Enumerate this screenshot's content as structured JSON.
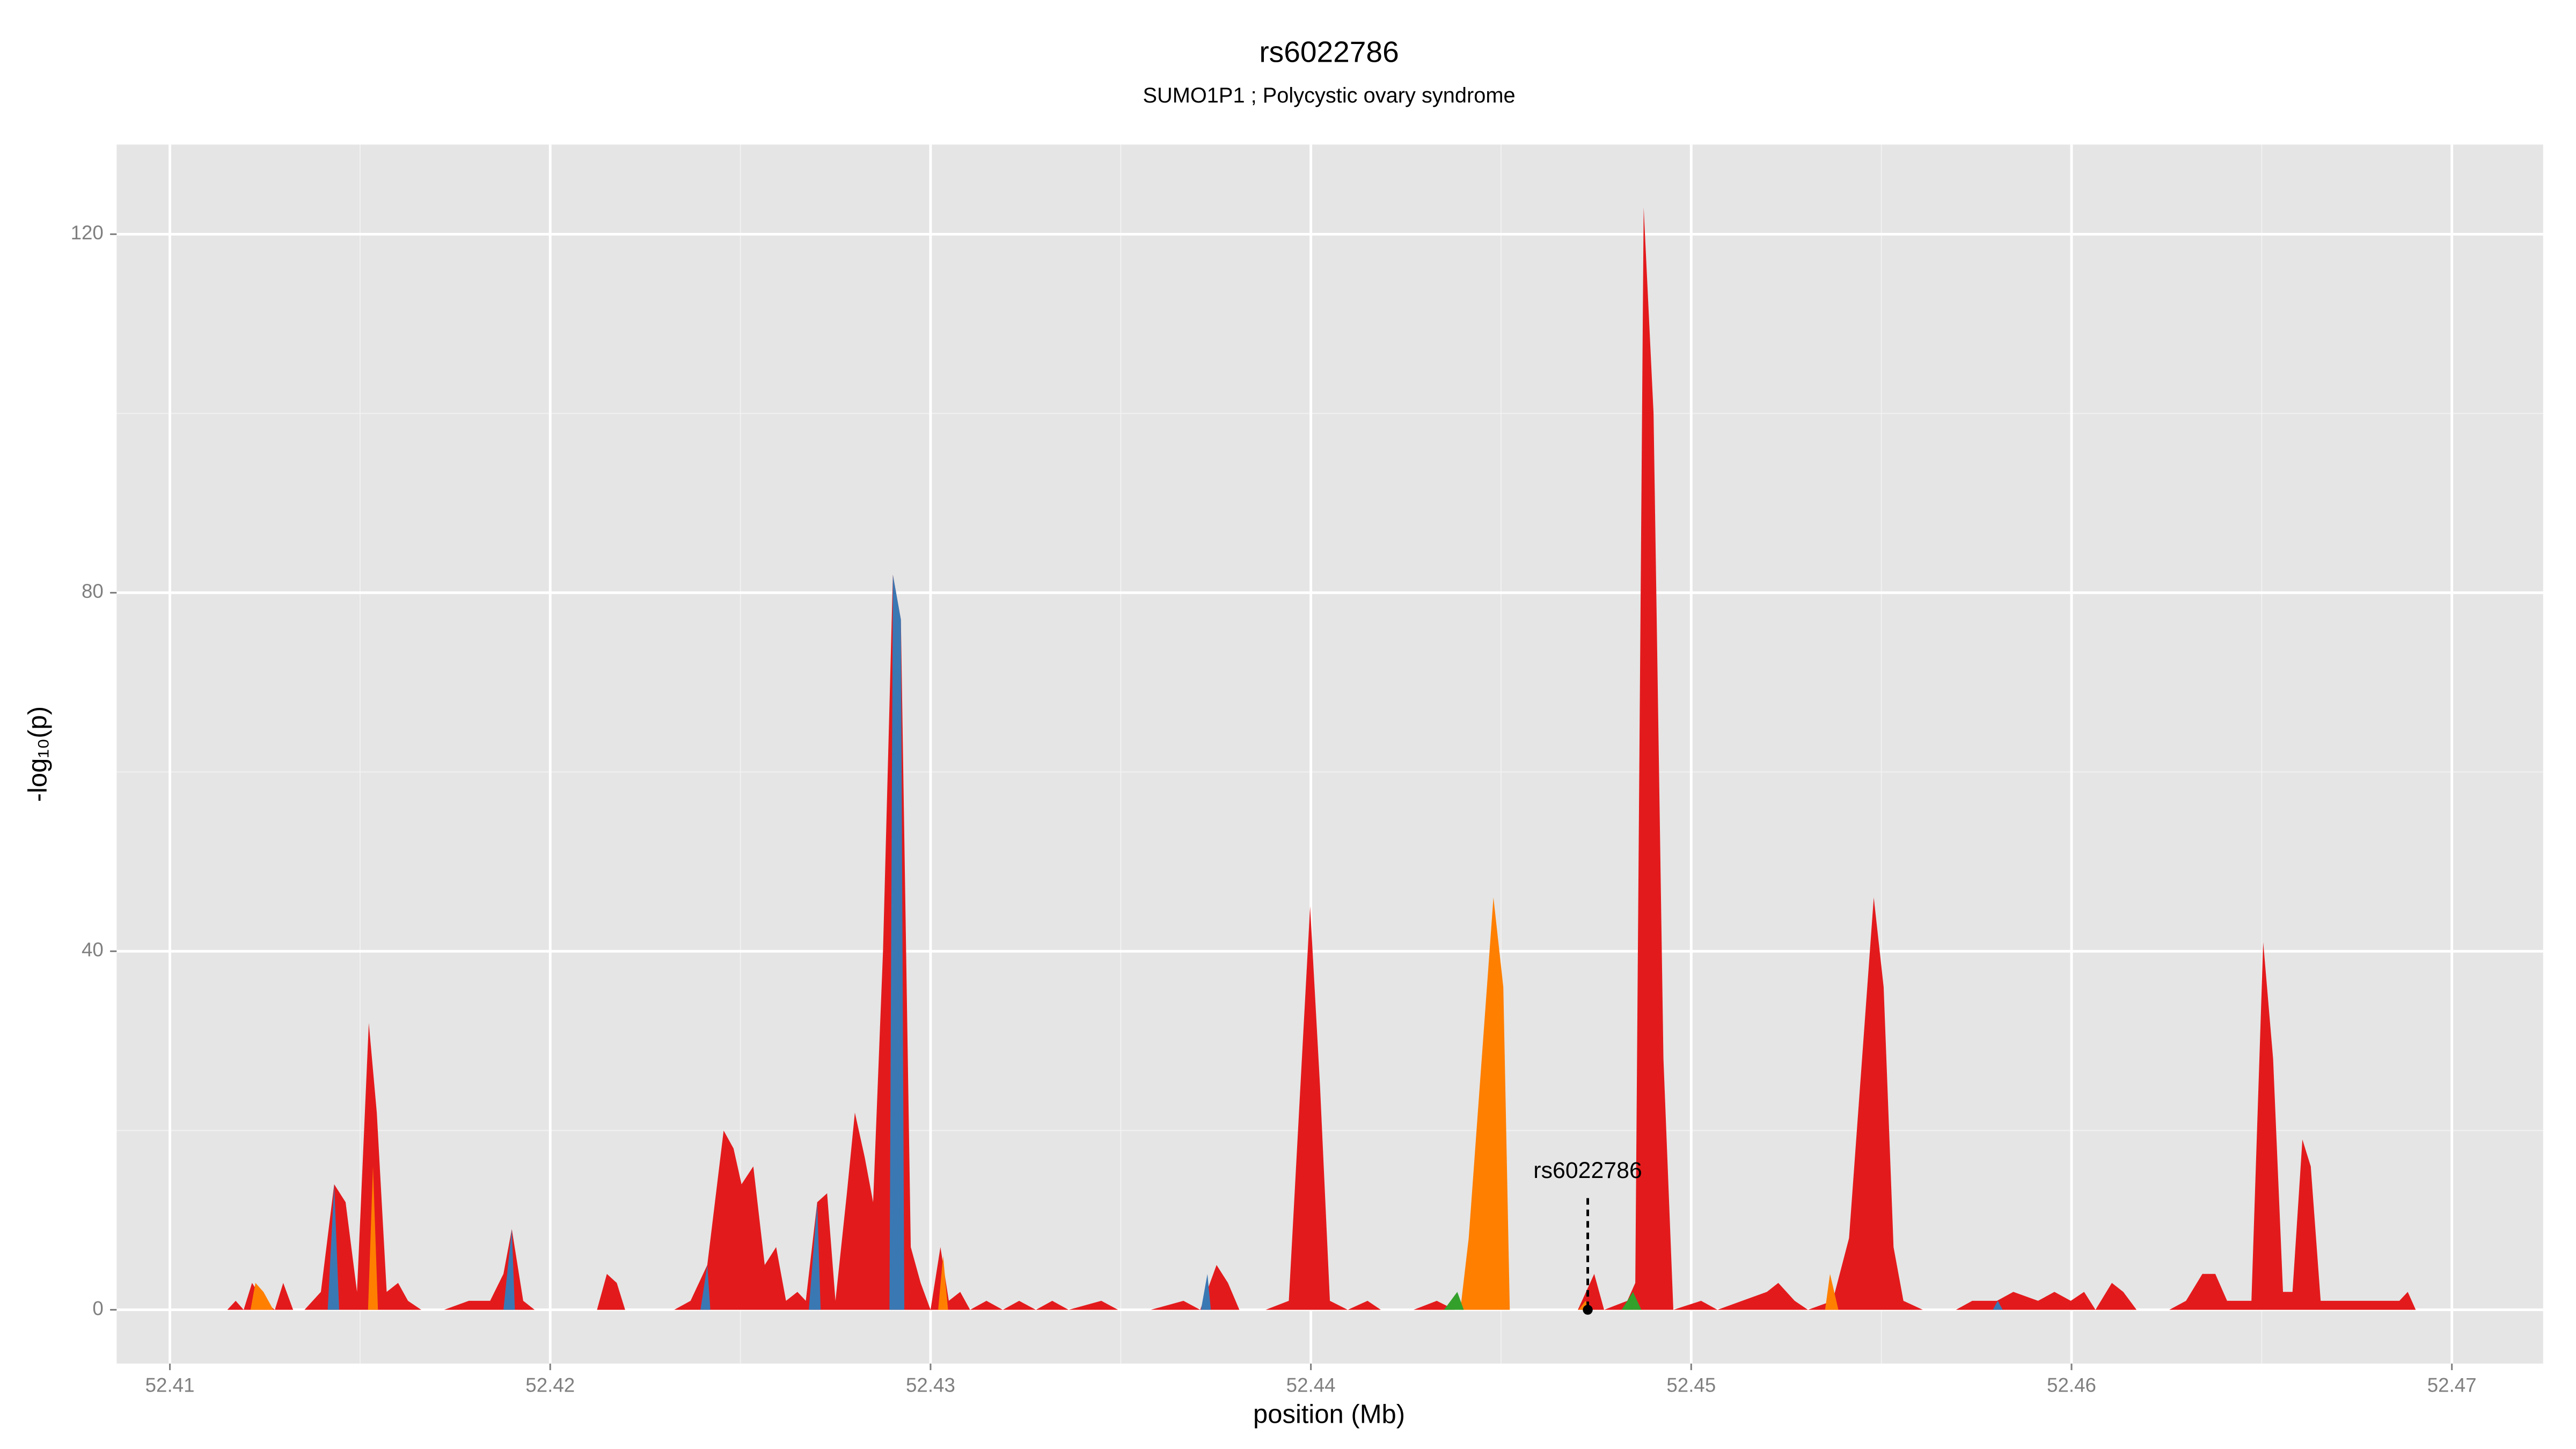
{
  "chart_data": {
    "type": "area",
    "title": "rs6022786",
    "subtitle": "SUMO1P1 ; Polycystic ovary syndrome",
    "x_label": "position (Mb)",
    "y_label": "-log₁₀(p)",
    "xlim": [
      52.4086,
      52.4724
    ],
    "ylim": [
      -6,
      130
    ],
    "xticks": [
      52.41,
      52.42,
      52.43,
      52.44,
      52.45,
      52.46,
      52.47
    ],
    "yticks": [
      0,
      40,
      80,
      120
    ],
    "grid": true,
    "series": [
      {
        "color": "#e31a1c",
        "x": [
          52.41151,
          52.41173,
          52.41194,
          52.41216,
          52.41246,
          52.41276,
          52.41298,
          52.41324,
          52.41354,
          52.41397,
          52.41432,
          52.41462,
          52.41492,
          52.41523,
          52.41544,
          52.4157,
          52.416,
          52.41626,
          52.41661,
          52.41721,
          52.41786,
          52.41842,
          52.41877,
          52.41899,
          52.41929,
          52.41959,
          52.42024,
          52.42089,
          52.42123,
          52.42149,
          52.42175,
          52.42197,
          52.42261,
          52.42326,
          52.42369,
          52.42413,
          52.42456,
          52.42482,
          52.42503,
          52.42534,
          52.42564,
          52.42594,
          52.4262,
          52.4265,
          52.42672,
          52.42702,
          52.42728,
          52.4275,
          52.4278,
          52.42801,
          52.42827,
          52.42849,
          52.42875,
          52.42901,
          52.42922,
          52.42948,
          52.42974,
          52.43,
          52.43026,
          52.43048,
          52.43078,
          52.43104,
          52.43147,
          52.4319,
          52.43233,
          52.43277,
          52.4332,
          52.43363,
          52.43449,
          52.43493,
          52.43579,
          52.43665,
          52.43709,
          52.43752,
          52.43782,
          52.43812,
          52.43881,
          52.43942,
          52.43998,
          52.44024,
          52.4405,
          52.44097,
          52.44149,
          52.44184,
          52.4427,
          52.44331,
          52.44378,
          52.44486,
          52.44637,
          52.44702,
          52.44745,
          52.44771,
          52.44832,
          52.44853,
          52.44875,
          52.44901,
          52.44927,
          52.44953,
          52.45026,
          52.45069,
          52.45134,
          52.45199,
          52.45229,
          52.45272,
          52.45307,
          52.45372,
          52.45415,
          52.4548,
          52.45506,
          52.45532,
          52.45558,
          52.45609,
          52.45696,
          52.45739,
          52.45804,
          52.45847,
          52.45912,
          52.45955,
          52.45998,
          52.46033,
          52.46063,
          52.46106,
          52.46136,
          52.46171,
          52.46257,
          52.46301,
          52.46344,
          52.46378,
          52.46409,
          52.46473,
          52.46504,
          52.4653,
          52.46556,
          52.46581,
          52.46607,
          52.46629,
          52.46655,
          52.46733,
          52.46797,
          52.46862,
          52.46884,
          52.46905,
          52.46949
        ],
        "values": [
          0,
          1,
          0,
          3,
          1,
          0,
          3,
          0,
          0,
          2,
          14,
          12,
          2,
          32,
          22,
          2,
          3,
          1,
          0,
          0,
          1,
          1,
          4,
          9,
          1,
          0,
          0,
          0,
          0,
          4,
          3,
          0,
          0,
          0,
          1,
          5,
          20,
          18,
          14,
          16,
          5,
          7,
          1,
          2,
          1,
          12,
          13,
          1,
          13,
          22,
          17,
          12,
          40,
          82,
          77,
          7,
          3,
          0,
          7,
          1,
          2,
          0,
          1,
          0,
          1,
          0,
          1,
          0,
          1,
          0,
          0,
          1,
          0,
          5,
          3,
          0,
          0,
          1,
          45,
          25,
          1,
          0,
          1,
          0,
          0,
          1,
          0,
          0,
          0,
          0,
          4,
          0,
          1,
          3,
          123,
          100,
          28,
          0,
          1,
          0,
          1,
          2,
          3,
          1,
          0,
          1,
          8,
          46,
          36,
          7,
          1,
          0,
          0,
          1,
          1,
          2,
          1,
          2,
          1,
          2,
          0,
          3,
          2,
          0,
          0,
          1,
          4,
          4,
          1,
          1,
          41,
          28,
          2,
          2,
          19,
          16,
          1,
          1,
          1,
          1,
          2,
          0,
          0
        ]
      },
      {
        "color": "#3a78b4",
        "x": [
          52.41415,
          52.41432,
          52.41445,
          null,
          52.41877,
          52.41899,
          52.41907,
          null,
          52.42395,
          52.42413,
          52.42421,
          null,
          52.4268,
          52.42702,
          52.42711,
          null,
          52.42892,
          52.42901,
          52.42922,
          52.42931,
          null,
          52.43711,
          52.43728,
          52.43737,
          null,
          52.45793,
          52.45806,
          52.45819
        ],
        "values": [
          0,
          14,
          0,
          null,
          0,
          9,
          0,
          null,
          0,
          5,
          0,
          null,
          0,
          12,
          0,
          null,
          0,
          82,
          77,
          0,
          null,
          0,
          4,
          0,
          null,
          0,
          1,
          0
        ]
      },
      {
        "color": "#ff7f00",
        "x": [
          52.41212,
          52.41225,
          52.41246,
          52.41272,
          null,
          52.41521,
          52.41534,
          52.41547,
          null,
          52.4302,
          52.43033,
          52.43046,
          null,
          52.44393,
          52.44415,
          52.4448,
          52.44506,
          52.44523,
          null,
          52.44704,
          52.44722,
          52.44739,
          null,
          52.45352,
          52.45365,
          52.45387
        ],
        "values": [
          0,
          3,
          2,
          0,
          null,
          0,
          16,
          0,
          null,
          0,
          6,
          0,
          null,
          0,
          8,
          46,
          36,
          0,
          null,
          0,
          1,
          0,
          null,
          0,
          4,
          0
        ]
      },
      {
        "color": "#33a02c",
        "x": [
          52.4435,
          52.44385,
          52.44402,
          null,
          52.44817,
          52.44847,
          52.44869
        ],
        "values": [
          0,
          2,
          0,
          null,
          0,
          2,
          0
        ]
      }
    ],
    "annotation": {
      "text": "rs6022786",
      "x": 52.44728,
      "y": 0
    }
  }
}
